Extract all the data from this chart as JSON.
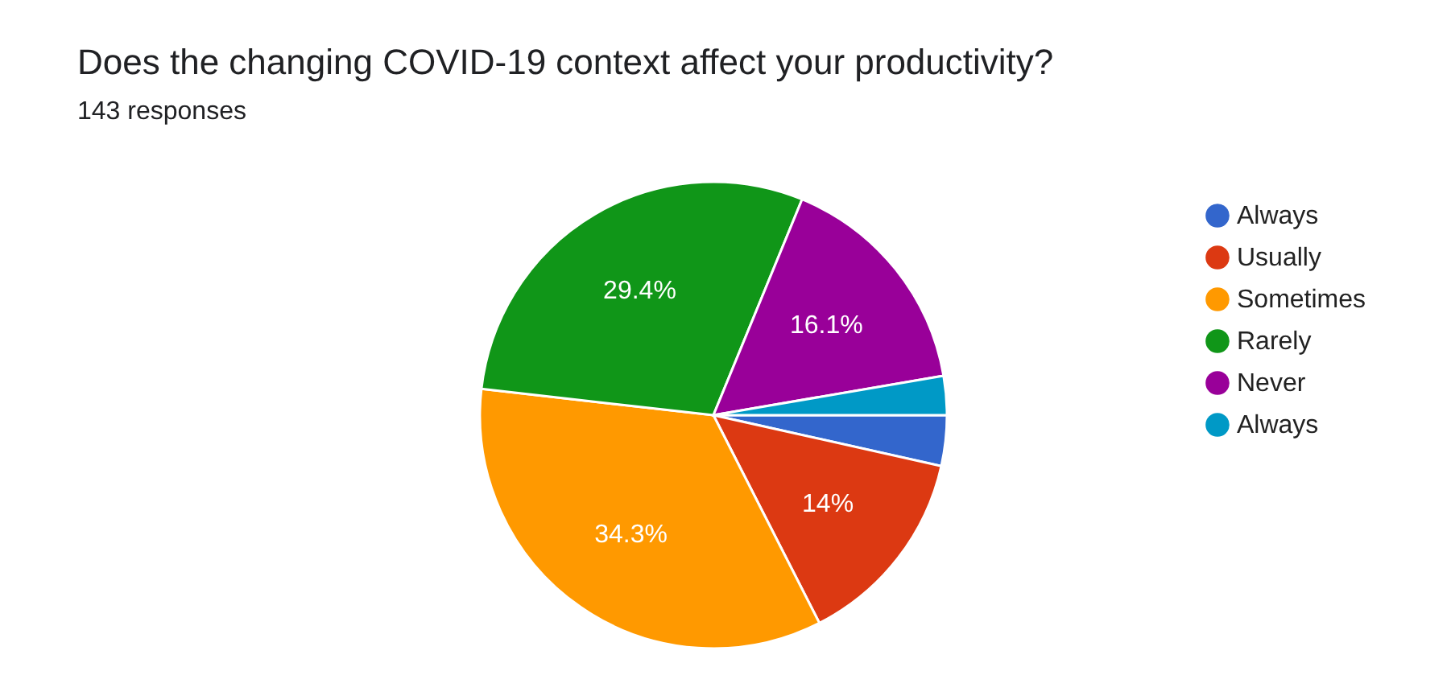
{
  "chart_data": {
    "type": "pie",
    "title": "Does the changing COVID-19 context affect your productivity?",
    "subtitle": "143 responses",
    "categories": [
      "Always",
      "Usually",
      "Sometimes",
      "Rarely",
      "Never",
      " Always"
    ],
    "values": [
      3.5,
      14,
      34.3,
      29.4,
      16.1,
      2.7
    ],
    "colors": [
      "#3366cc",
      "#dc3912",
      "#ff9900",
      "#109618",
      "#990099",
      "#0099c6"
    ],
    "value_labels": [
      null,
      "14%",
      "34.3%",
      "29.4%",
      "16.1%",
      null
    ],
    "legend": "right"
  }
}
